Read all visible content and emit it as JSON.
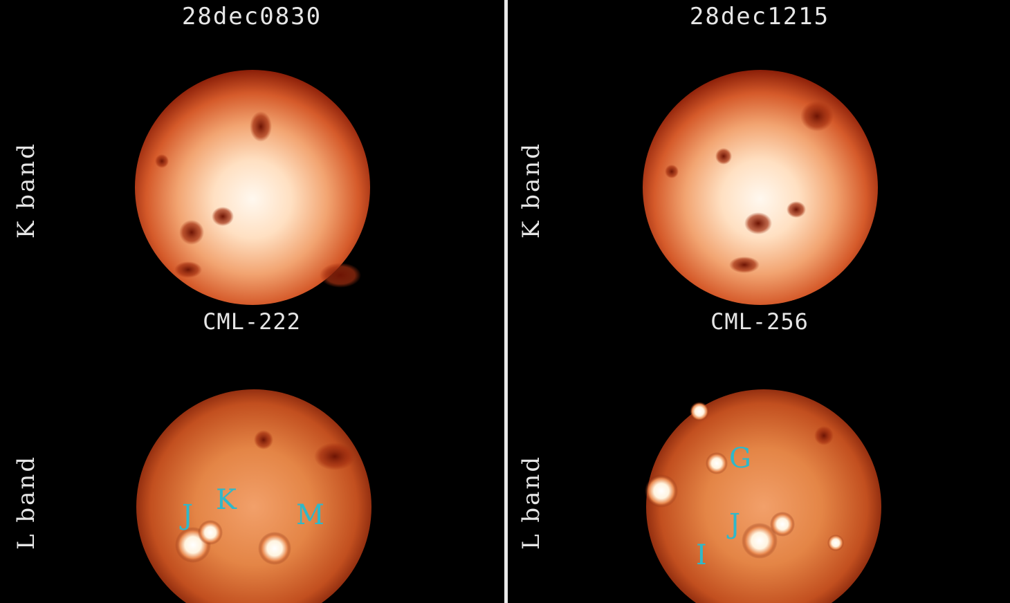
{
  "panels": [
    {
      "title": "28dec0830",
      "cml": "CML-222",
      "k_band_label": "K band",
      "l_band_label": "L band",
      "markers": [
        "J",
        "K",
        "M"
      ]
    },
    {
      "title": "28dec1215",
      "cml": "CML-256",
      "k_band_label": "K band",
      "l_band_label": "L band",
      "markers": [
        "G",
        "J",
        "I"
      ]
    }
  ],
  "colors": {
    "marker": "#2fb8c9",
    "background": "#000000",
    "divider": "#e9e9e9"
  }
}
